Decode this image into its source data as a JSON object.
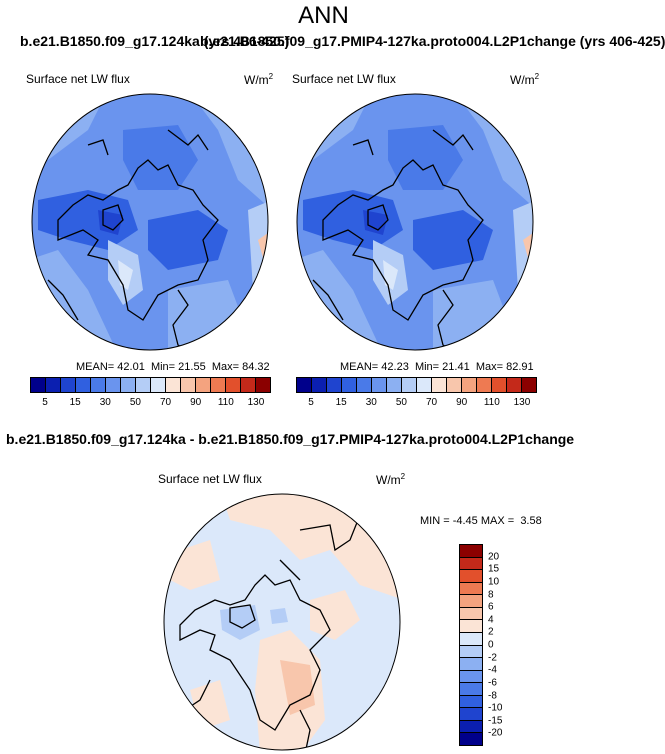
{
  "figure_title": "ANN",
  "panel1": {
    "header": "b.e21.B1850.f09_g17.124ka (yrs 406-425)",
    "variable": "Surface net LW flux",
    "units": "W/m",
    "units_exp": "2",
    "mean_label": "MEAN=",
    "mean": "42.01",
    "min_label": "Min=",
    "min": "21.55",
    "max_label": "Max=",
    "max": "84.32"
  },
  "panel2": {
    "header": "b.e21.B1850.f09_g17.PMIP4-127ka.proto004.L2P1change (yrs 406-425)",
    "variable": "Surface net LW flux",
    "units": "W/m",
    "units_exp": "2",
    "mean_label": "MEAN=",
    "mean": "42.23",
    "min_label": "Min=",
    "min": "21.41",
    "max_label": "Max=",
    "max": "82.91"
  },
  "panel3": {
    "header": "b.e21.B1850.f09_g17.124ka - b.e21.B1850.f09_g17.PMIP4-127ka.proto004.L2P1change",
    "variable": "Surface net LW flux",
    "units": "W/m",
    "units_exp": "2",
    "min_label": "MIN =",
    "min": "-4.45",
    "max_label": "MAX =",
    "max": "3.58"
  },
  "colorbar_abs": {
    "colors": [
      "#00008b",
      "#0b1fb0",
      "#1f44cf",
      "#3060e0",
      "#4a7ae8",
      "#6a94ee",
      "#8cb0f2",
      "#b4cdf6",
      "#dbe8fa",
      "#fbe4d6",
      "#f8c6ac",
      "#f4a37f",
      "#ee7a52",
      "#e2502c",
      "#c4291a",
      "#8b0000"
    ],
    "tick_labels": [
      "5",
      "15",
      "30",
      "50",
      "70",
      "90",
      "110",
      "130"
    ]
  },
  "colorbar_diff": {
    "colors": [
      "#8b0000",
      "#c4291a",
      "#e2502c",
      "#ee7a52",
      "#f4a37f",
      "#f8c6ac",
      "#fbe4d6",
      "#dbe8fa",
      "#b4cdf6",
      "#8cb0f2",
      "#6a94ee",
      "#4a7ae8",
      "#3060e0",
      "#1f44cf",
      "#0b1fb0",
      "#00008b"
    ],
    "tick_labels": [
      "20",
      "15",
      "10",
      "8",
      "6",
      "4",
      "2",
      "0",
      "-2",
      "-4",
      "-6",
      "-8",
      "-10",
      "-15",
      "-20"
    ]
  }
}
